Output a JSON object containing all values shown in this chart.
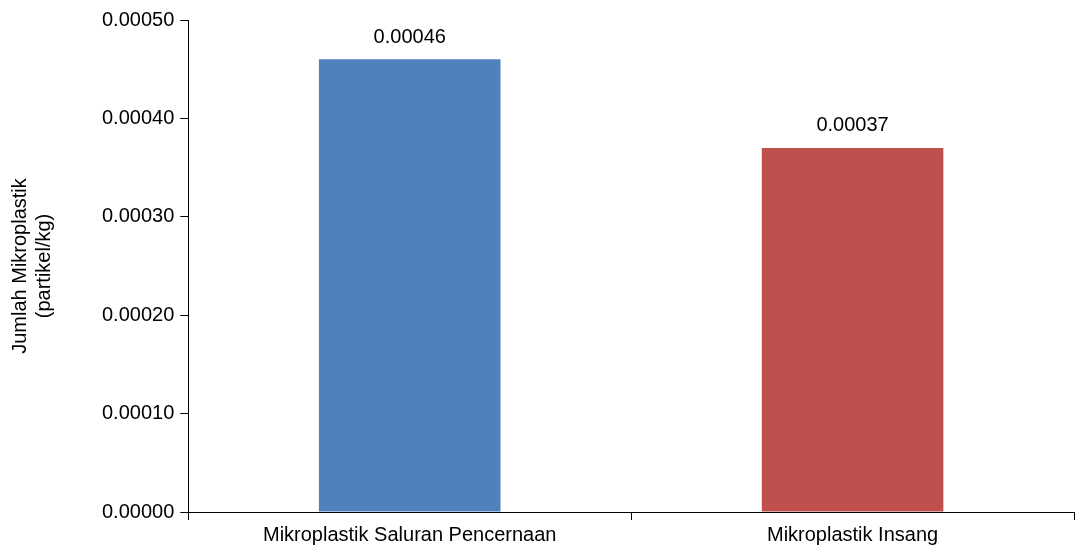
{
  "chart_data": {
    "type": "bar",
    "ylabel": "Jumlah Mikroplastik\n(partikel/kg)",
    "categories": [
      "Mikroplastik Saluran Pencernaan",
      "Mikroplastik Insang"
    ],
    "values": [
      0.00046,
      0.00037
    ],
    "colors": [
      "#4f81bd",
      "#c0504d"
    ],
    "ylim": [
      0,
      0.0005
    ],
    "yticks": [
      {
        "value": 0,
        "label": "0.00000"
      },
      {
        "value": 0.0001,
        "label": "0.00010"
      },
      {
        "value": 0.0002,
        "label": "0.00020"
      },
      {
        "value": 0.0003,
        "label": "0.00030"
      },
      {
        "value": 0.0004,
        "label": "0.00040"
      },
      {
        "value": 0.0005,
        "label": "0.00050"
      }
    ],
    "data_labels": true,
    "grid": false,
    "legend": false
  }
}
